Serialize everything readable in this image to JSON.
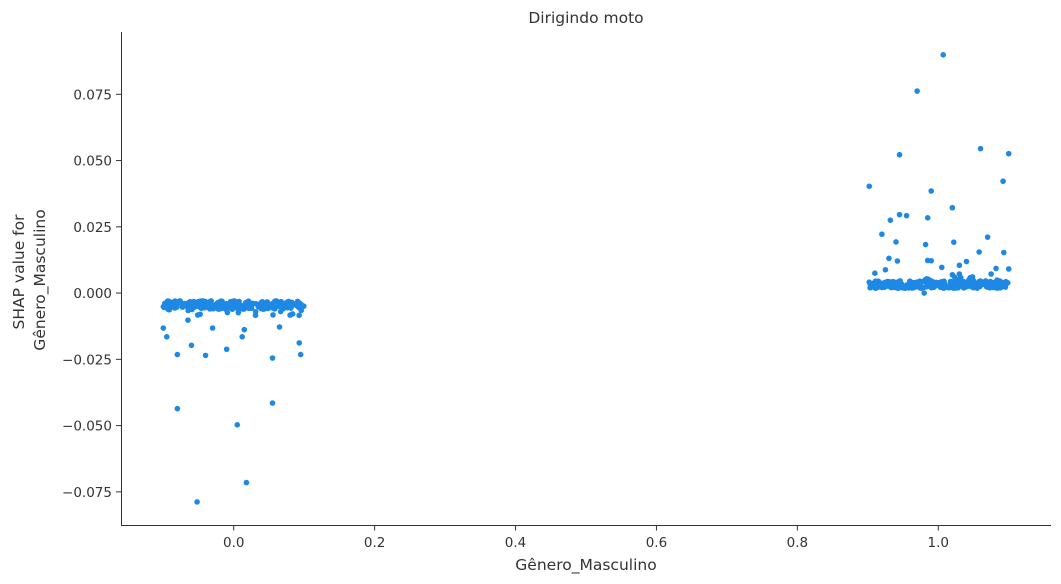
{
  "chart_data": {
    "type": "scatter",
    "title": "Dirigindo moto",
    "xlabel": "Gênero_Masculino",
    "ylabel_lines": [
      "SHAP value for",
      "Gênero_Masculino"
    ],
    "xlim": [
      -0.16,
      1.16
    ],
    "ylim": [
      -0.0875,
      0.0985
    ],
    "x_ticks": [
      0.0,
      0.2,
      0.4,
      0.6,
      0.8,
      1.0
    ],
    "x_tick_labels": [
      "0.0",
      "0.2",
      "0.4",
      "0.6",
      "0.8",
      "1.0"
    ],
    "y_ticks": [
      -0.075,
      -0.05,
      -0.025,
      0.0,
      0.025,
      0.05,
      0.075
    ],
    "y_tick_labels": [
      "−0.075",
      "−0.050",
      "−0.025",
      "0.000",
      "0.025",
      "0.050",
      "0.075"
    ],
    "grid": false,
    "marker_color": "#1e88e5",
    "outliers": [
      [
        -0.052,
        -0.0788
      ],
      [
        0.018,
        -0.0715
      ],
      [
        0.005,
        -0.0497
      ],
      [
        -0.08,
        -0.0436
      ],
      [
        0.055,
        -0.0415
      ],
      [
        -0.08,
        -0.0232
      ],
      [
        -0.04,
        -0.0235
      ],
      [
        0.055,
        -0.0245
      ],
      [
        0.095,
        -0.0232
      ],
      [
        -0.06,
        -0.0197
      ],
      [
        -0.01,
        -0.0212
      ],
      [
        0.093,
        -0.0188
      ],
      [
        -0.095,
        -0.0165
      ],
      [
        0.012,
        -0.0165
      ],
      [
        -0.1,
        -0.0132
      ],
      [
        -0.03,
        -0.0132
      ],
      [
        0.015,
        -0.0138
      ],
      [
        0.065,
        -0.0128
      ],
      [
        -0.065,
        -0.0102
      ],
      [
        0.98,
        -0.0
      ],
      [
        1.007,
        0.0899
      ],
      [
        0.97,
        0.0762
      ],
      [
        1.06,
        0.0545
      ],
      [
        0.945,
        0.0522
      ],
      [
        1.1,
        0.0526
      ],
      [
        1.092,
        0.0422
      ],
      [
        0.902,
        0.0403
      ],
      [
        0.99,
        0.0385
      ],
      [
        1.02,
        0.0322
      ],
      [
        0.945,
        0.0296
      ],
      [
        0.955,
        0.0292
      ],
      [
        0.932,
        0.0275
      ],
      [
        0.985,
        0.0284
      ],
      [
        0.92,
        0.0222
      ],
      [
        1.07,
        0.0211
      ],
      [
        0.94,
        0.0193
      ],
      [
        0.982,
        0.0183
      ],
      [
        1.022,
        0.0192
      ],
      [
        1.093,
        0.0153
      ],
      [
        1.058,
        0.0155
      ],
      [
        0.93,
        0.0131
      ],
      [
        0.942,
        0.0121
      ],
      [
        0.985,
        0.0123
      ],
      [
        0.99,
        0.0122
      ],
      [
        1.04,
        0.0119
      ],
      [
        1.03,
        0.0105
      ],
      [
        1.005,
        0.0097
      ],
      [
        0.925,
        0.0088
      ],
      [
        1.082,
        0.0093
      ],
      [
        1.1,
        0.0091
      ],
      [
        0.91,
        0.0075
      ],
      [
        1.03,
        0.0072
      ],
      [
        1.075,
        0.0072
      ],
      [
        1.02,
        0.0069
      ]
    ],
    "dense_bands": [
      {
        "x_range": [
          -0.1,
          0.1
        ],
        "y_center": -0.0045,
        "y_spread": 0.0016,
        "count": 220,
        "tail_y": -0.0085,
        "tail_count": 25
      },
      {
        "x_range": [
          0.9,
          1.1
        ],
        "y_center": 0.0032,
        "y_spread": 0.0014,
        "count": 240,
        "tail_y": 0.0062,
        "tail_count": 30
      }
    ]
  }
}
